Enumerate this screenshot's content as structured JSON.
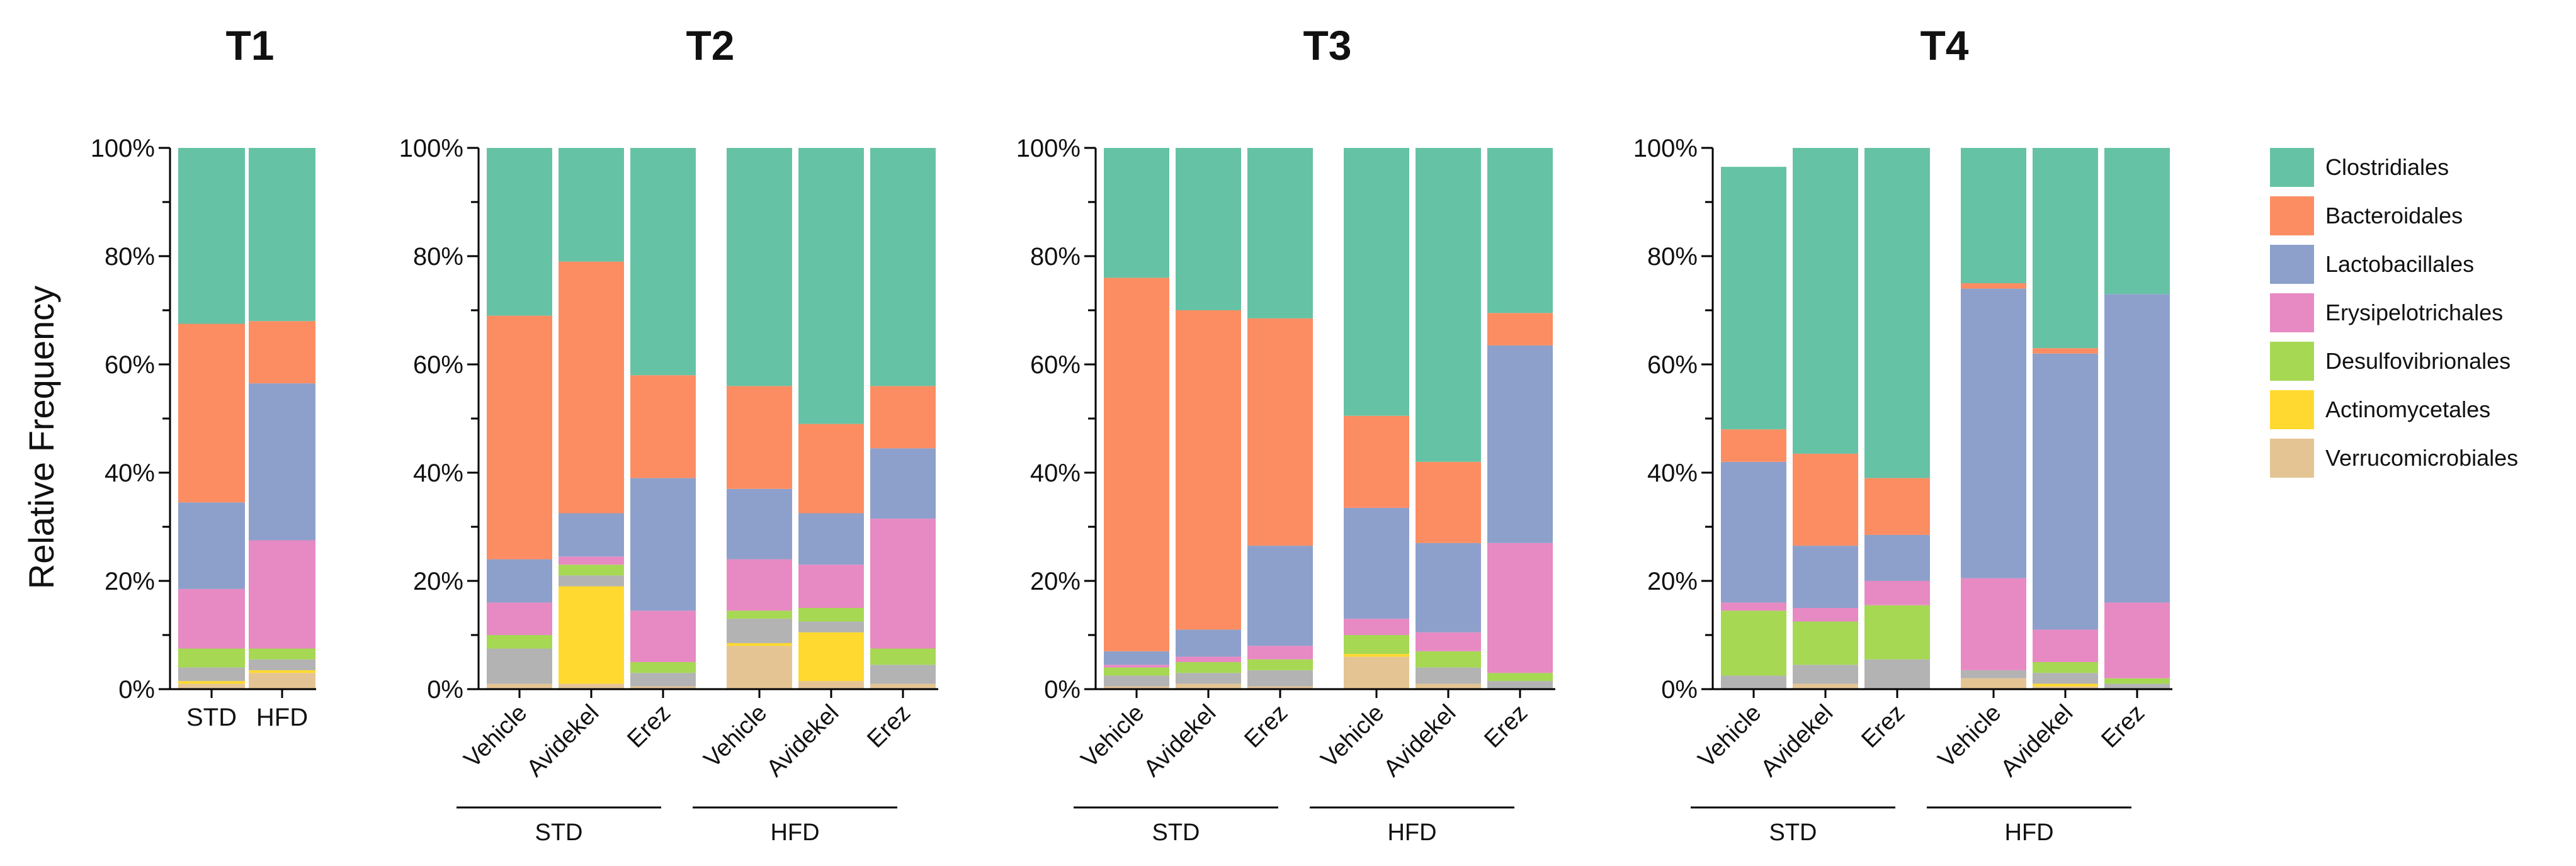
{
  "chart_data": {
    "type": "bar",
    "stacked": true,
    "ylabel": "Relative Frequency",
    "ylim": [
      0,
      100
    ],
    "yticks": [
      "0%",
      "20%",
      "40%",
      "60%",
      "80%",
      "100%"
    ],
    "stack_order_bottom_to_top": [
      "Verrucomicrobiales",
      "Actinomycetales",
      "Other",
      "Desulfovibrionales",
      "Erysipelotrichales",
      "Lactobacillales",
      "Bacteroidales",
      "Clostridiales"
    ],
    "series_colors": {
      "Clostridiales": "#66c2a5",
      "Bacteroidales": "#fc8d62",
      "Lactobacillales": "#8da0cb",
      "Erysipelotrichales": "#e78ac3",
      "Desulfovibrionales": "#a6d854",
      "Actinomycetales": "#ffd92f",
      "Verrucomicrobiales": "#e5c494",
      "Other": "#b3b3b3"
    },
    "legend": [
      "Clostridiales",
      "Bacteroidales",
      "Lactobacillales",
      "Erysipelotrichales",
      "Desulfovibrionales",
      "Actinomycetales",
      "Verrucomicrobiales"
    ],
    "panels": [
      {
        "title": "T1",
        "groups": [],
        "bars": [
          {
            "label": "STD",
            "values": {
              "Verrucomicrobiales": 1,
              "Actinomycetales": 0.5,
              "Other": 2.5,
              "Desulfovibrionales": 3.5,
              "Erysipelotrichales": 11,
              "Lactobacillales": 16,
              "Bacteroidales": 33,
              "Clostridiales": 32.5
            }
          },
          {
            "label": "HFD",
            "values": {
              "Verrucomicrobiales": 3,
              "Actinomycetales": 0.5,
              "Other": 2,
              "Desulfovibrionales": 2,
              "Erysipelotrichales": 20,
              "Lactobacillales": 29,
              "Bacteroidales": 11.5,
              "Clostridiales": 32
            }
          }
        ]
      },
      {
        "title": "T2",
        "groups": [
          "STD",
          "HFD"
        ],
        "bars": [
          {
            "label": "Vehicle",
            "values": {
              "Verrucomicrobiales": 1,
              "Actinomycetales": 0,
              "Other": 6.5,
              "Desulfovibrionales": 2.5,
              "Erysipelotrichales": 6,
              "Lactobacillales": 8,
              "Bacteroidales": 45,
              "Clostridiales": 31
            }
          },
          {
            "label": "Avidekel",
            "values": {
              "Verrucomicrobiales": 1,
              "Actinomycetales": 18,
              "Other": 2,
              "Desulfovibrionales": 2,
              "Erysipelotrichales": 1.5,
              "Lactobacillales": 8,
              "Bacteroidales": 46.5,
              "Clostridiales": 21
            }
          },
          {
            "label": "Erez",
            "values": {
              "Verrucomicrobiales": 0.5,
              "Actinomycetales": 0,
              "Other": 2.5,
              "Desulfovibrionales": 2,
              "Erysipelotrichales": 9.5,
              "Lactobacillales": 24.5,
              "Bacteroidales": 19,
              "Clostridiales": 42
            }
          },
          {
            "label": "Vehicle",
            "values": {
              "Verrucomicrobiales": 8,
              "Actinomycetales": 0.5,
              "Other": 4.5,
              "Desulfovibrionales": 1.5,
              "Erysipelotrichales": 9.5,
              "Lactobacillales": 13,
              "Bacteroidales": 19,
              "Clostridiales": 44
            }
          },
          {
            "label": "Avidekel",
            "values": {
              "Verrucomicrobiales": 1.5,
              "Actinomycetales": 9,
              "Other": 2,
              "Desulfovibrionales": 2.5,
              "Erysipelotrichales": 8,
              "Lactobacillales": 9.5,
              "Bacteroidales": 16.5,
              "Clostridiales": 51
            }
          },
          {
            "label": "Erez",
            "values": {
              "Verrucomicrobiales": 1,
              "Actinomycetales": 0,
              "Other": 3.5,
              "Desulfovibrionales": 3,
              "Erysipelotrichales": 24,
              "Lactobacillales": 13,
              "Bacteroidales": 11.5,
              "Clostridiales": 44
            }
          }
        ]
      },
      {
        "title": "T3",
        "groups": [
          "STD",
          "HFD"
        ],
        "bars": [
          {
            "label": "Vehicle",
            "values": {
              "Verrucomicrobiales": 0.5,
              "Actinomycetales": 0,
              "Other": 2,
              "Desulfovibrionales": 1.5,
              "Erysipelotrichales": 0.5,
              "Lactobacillales": 2.5,
              "Bacteroidales": 69,
              "Clostridiales": 24
            }
          },
          {
            "label": "Avidekel",
            "values": {
              "Verrucomicrobiales": 1,
              "Actinomycetales": 0,
              "Other": 2,
              "Desulfovibrionales": 2,
              "Erysipelotrichales": 1,
              "Lactobacillales": 5,
              "Bacteroidales": 59,
              "Clostridiales": 30
            }
          },
          {
            "label": "Erez",
            "values": {
              "Verrucomicrobiales": 0.5,
              "Actinomycetales": 0,
              "Other": 3,
              "Desulfovibrionales": 2,
              "Erysipelotrichales": 2.5,
              "Lactobacillales": 18.5,
              "Bacteroidales": 42,
              "Clostridiales": 31.5
            }
          },
          {
            "label": "Vehicle",
            "values": {
              "Verrucomicrobiales": 6,
              "Actinomycetales": 0.5,
              "Other": 0,
              "Desulfovibrionales": 3.5,
              "Erysipelotrichales": 3,
              "Lactobacillales": 20.5,
              "Bacteroidales": 17,
              "Clostridiales": 49.5
            }
          },
          {
            "label": "Avidekel",
            "values": {
              "Verrucomicrobiales": 1,
              "Actinomycetales": 0,
              "Other": 3,
              "Desulfovibrionales": 3,
              "Erysipelotrichales": 3.5,
              "Lactobacillales": 16.5,
              "Bacteroidales": 15,
              "Clostridiales": 58
            }
          },
          {
            "label": "Erez",
            "values": {
              "Verrucomicrobiales": 0,
              "Actinomycetales": 0,
              "Other": 1.5,
              "Desulfovibrionales": 1.5,
              "Erysipelotrichales": 24,
              "Lactobacillales": 36.5,
              "Bacteroidales": 6,
              "Clostridiales": 30.5
            }
          }
        ]
      },
      {
        "title": "T4",
        "groups": [
          "STD",
          "HFD"
        ],
        "bars": [
          {
            "label": "Vehicle",
            "values": {
              "Verrucomicrobiales": 0,
              "Actinomycetales": 0,
              "Other": 2.5,
              "Desulfovibrionales": 12,
              "Erysipelotrichales": 1.5,
              "Lactobacillales": 26,
              "Bacteroidales": 6,
              "Clostridiales": 48.5
            }
          },
          {
            "label": "Avidekel",
            "values": {
              "Verrucomicrobiales": 1,
              "Actinomycetales": 0,
              "Other": 3.5,
              "Desulfovibrionales": 8,
              "Erysipelotrichales": 2.5,
              "Lactobacillales": 11.5,
              "Bacteroidales": 17,
              "Clostridiales": 56.5
            }
          },
          {
            "label": "Erez",
            "values": {
              "Verrucomicrobiales": 0,
              "Actinomycetales": 0,
              "Other": 5.5,
              "Desulfovibrionales": 10,
              "Erysipelotrichales": 4.5,
              "Lactobacillales": 8.5,
              "Bacteroidales": 10.5,
              "Clostridiales": 61
            }
          },
          {
            "label": "Vehicle",
            "values": {
              "Verrucomicrobiales": 2,
              "Actinomycetales": 0,
              "Other": 1.5,
              "Desulfovibrionales": 0,
              "Erysipelotrichales": 17,
              "Lactobacillales": 53.5,
              "Bacteroidales": 1,
              "Clostridiales": 25
            }
          },
          {
            "label": "Avidekel",
            "values": {
              "Verrucomicrobiales": 0.5,
              "Actinomycetales": 0.5,
              "Other": 2,
              "Desulfovibrionales": 2,
              "Erysipelotrichales": 6,
              "Lactobacillales": 51,
              "Bacteroidales": 1,
              "Clostridiales": 37
            }
          },
          {
            "label": "Erez",
            "values": {
              "Verrucomicrobiales": 0,
              "Actinomycetales": 0,
              "Other": 1,
              "Desulfovibrionales": 1,
              "Erysipelotrichales": 14,
              "Lactobacillales": 57,
              "Bacteroidales": 0,
              "Clostridiales": 27
            }
          }
        ]
      }
    ]
  }
}
